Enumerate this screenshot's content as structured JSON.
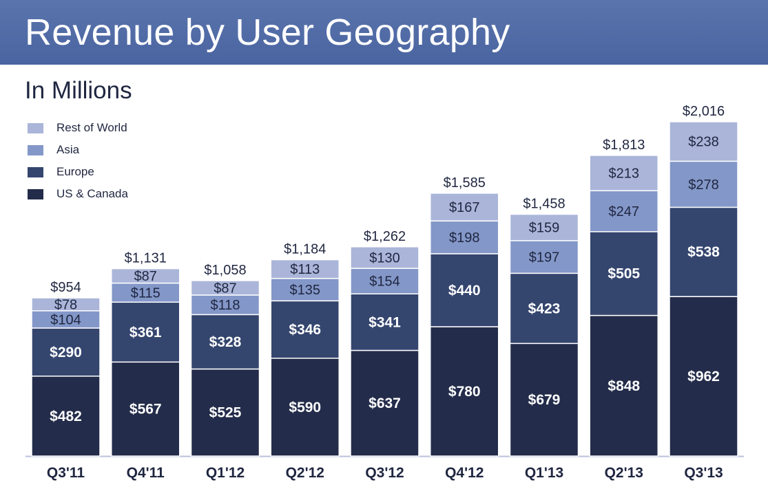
{
  "header": {
    "title": "Revenue by User Geography"
  },
  "subtitle": "In Millions",
  "colors": {
    "banner": "#5068a5",
    "rest_of_world": "#aab5d9",
    "asia": "#8397c8",
    "europe": "#34456e",
    "us_canada": "#232c4a"
  },
  "legend": [
    {
      "label": "Rest of World",
      "color": "#aab5d9"
    },
    {
      "label": "Asia",
      "color": "#8397c8"
    },
    {
      "label": "Europe",
      "color": "#34456e"
    },
    {
      "label": "US & Canada",
      "color": "#232c4a"
    }
  ],
  "chart_data": {
    "type": "bar",
    "stacked": true,
    "title": "Revenue by User Geography",
    "subtitle": "In Millions",
    "categories": [
      "Q3'11",
      "Q4'11",
      "Q1'12",
      "Q2'12",
      "Q3'12",
      "Q4'12",
      "Q1'13",
      "Q2'13",
      "Q3'13"
    ],
    "series": [
      {
        "name": "US & Canada",
        "color": "#232c4a",
        "values": [
          482,
          567,
          525,
          590,
          637,
          780,
          679,
          848,
          962
        ],
        "labels": [
          "$482",
          "$567",
          "$525",
          "$590",
          "$637",
          "$780",
          "$679",
          "$848",
          "$962"
        ]
      },
      {
        "name": "Europe",
        "color": "#34456e",
        "values": [
          290,
          361,
          328,
          346,
          341,
          440,
          423,
          505,
          538
        ],
        "labels": [
          "$290",
          "$361",
          "$328",
          "$346",
          "$341",
          "$440",
          "$423",
          "$505",
          "$538"
        ]
      },
      {
        "name": "Asia",
        "color": "#8397c8",
        "values": [
          104,
          115,
          118,
          135,
          154,
          198,
          197,
          247,
          278
        ],
        "labels": [
          "$104",
          "$115",
          "$118",
          "$135",
          "$154",
          "$198",
          "$197",
          "$247",
          "$278"
        ]
      },
      {
        "name": "Rest of World",
        "color": "#aab5d9",
        "values": [
          78,
          87,
          87,
          113,
          130,
          167,
          159,
          213,
          238
        ],
        "labels": [
          "$78",
          "$87",
          "$87",
          "$113",
          "$130",
          "$167",
          "$159",
          "$213",
          "$238"
        ]
      }
    ],
    "totals": [
      954,
      1131,
      1058,
      1184,
      1262,
      1585,
      1458,
      1813,
      2016
    ],
    "total_labels": [
      "$954",
      "$1,131",
      "$1,058",
      "$1,184",
      "$1,262",
      "$1,585",
      "$1,458",
      "$1,813",
      "$2,016"
    ],
    "xlabel": "",
    "ylabel": "",
    "ylim": [
      0,
      2016
    ],
    "grid": false,
    "legend_position": "top-left"
  }
}
